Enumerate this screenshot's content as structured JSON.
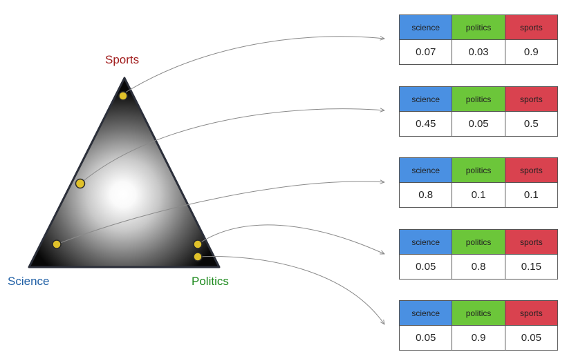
{
  "vertices": {
    "top": {
      "label": "Sports",
      "color": "#a11d1d"
    },
    "left": {
      "label": "Science",
      "color": "#1f5fa5"
    },
    "right": {
      "label": "Politics",
      "color": "#1e8a1e"
    }
  },
  "header_colors": [
    "#4a90e2",
    "#6cc63a",
    "#d9424f"
  ],
  "point_color": "#e0c12a",
  "tables": [
    {
      "headers": [
        "science",
        "politics",
        "sports"
      ],
      "values": [
        "0.07",
        "0.03",
        "0.9"
      ]
    },
    {
      "headers": [
        "science",
        "politics",
        "sports"
      ],
      "values": [
        "0.45",
        "0.05",
        "0.5"
      ]
    },
    {
      "headers": [
        "science",
        "politics",
        "sports"
      ],
      "values": [
        "0.8",
        "0.1",
        "0.1"
      ]
    },
    {
      "headers": [
        "science",
        "politics",
        "sports"
      ],
      "values": [
        "0.05",
        "0.8",
        "0.15"
      ]
    },
    {
      "headers": [
        "science",
        "politics",
        "sports"
      ],
      "values": [
        "0.05",
        "0.9",
        "0.05"
      ]
    }
  ]
}
